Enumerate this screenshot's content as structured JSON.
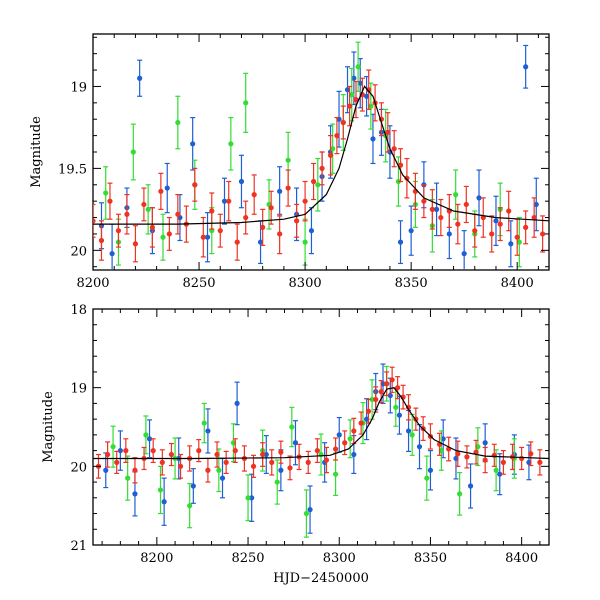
{
  "figure": {
    "colors": {
      "blue": "#1f5fd6",
      "green": "#33dd33",
      "red": "#ee3322",
      "fit": "#000000"
    }
  },
  "chart_data": [
    {
      "type": "scatter",
      "panel": "top",
      "xlabel": "",
      "ylabel": "Magnitude",
      "xlim": [
        8200,
        8415
      ],
      "ylim": [
        20.12,
        18.68
      ],
      "y_inverted": true,
      "x_ticks": [
        8200,
        8250,
        8300,
        8350,
        8400
      ],
      "x_tick_labels": [
        "8200",
        "8250",
        "8300",
        "8350",
        "8400"
      ],
      "y_ticks": [
        19,
        19.5,
        20
      ],
      "y_tick_labels": [
        "19",
        "19.5",
        "20"
      ],
      "series": [
        {
          "color": "blue",
          "x": [
            8204,
            8209,
            8216,
            8222,
            8228,
            8235,
            8241,
            8247,
            8254,
            8262,
            8270,
            8279,
            8288,
            8296,
            8303,
            8308,
            8312,
            8316,
            8320,
            8323,
            8326,
            8329,
            8332,
            8336,
            8340,
            8345,
            8350,
            8356,
            8362,
            8368,
            8375,
            8382,
            8390,
            8397,
            8404,
            8409
          ],
          "y": [
            19.85,
            20.02,
            19.74,
            18.95,
            19.88,
            19.62,
            19.8,
            19.35,
            19.92,
            19.7,
            19.58,
            19.95,
            19.64,
            19.78,
            19.88,
            19.55,
            19.4,
            19.2,
            19.02,
            18.95,
            18.98,
            19.06,
            19.32,
            19.28,
            19.4,
            19.95,
            19.88,
            19.6,
            19.75,
            19.9,
            20.02,
            19.68,
            19.82,
            19.96,
            18.88,
            19.72
          ],
          "yerr": [
            0.14,
            0.18,
            0.12,
            0.11,
            0.14,
            0.15,
            0.14,
            0.16,
            0.15,
            0.14,
            0.16,
            0.13,
            0.15,
            0.16,
            0.14,
            0.15,
            0.16,
            0.17,
            0.14,
            0.16,
            0.15,
            0.12,
            0.15,
            0.14,
            0.16,
            0.13,
            0.15,
            0.14,
            0.16,
            0.15,
            0.14,
            0.17,
            0.15,
            0.14,
            0.13,
            0.16
          ]
        },
        {
          "color": "green",
          "x": [
            8206,
            8212,
            8219,
            8226,
            8233,
            8240,
            8248,
            8256,
            8265,
            8272,
            8283,
            8292,
            8300,
            8306,
            8313,
            8318,
            8322,
            8325,
            8331,
            8338,
            8344,
            8352,
            8360,
            8371,
            8380,
            8392,
            8401
          ],
          "y": [
            19.65,
            19.95,
            19.4,
            19.75,
            19.92,
            19.22,
            19.6,
            19.88,
            19.35,
            19.1,
            19.72,
            19.45,
            19.95,
            19.6,
            19.38,
            19.22,
            19.05,
            18.88,
            19.12,
            19.3,
            19.58,
            19.72,
            19.85,
            19.66,
            19.9,
            19.75,
            19.95
          ],
          "yerr": [
            0.16,
            0.14,
            0.17,
            0.15,
            0.14,
            0.16,
            0.15,
            0.14,
            0.16,
            0.18,
            0.15,
            0.17,
            0.14,
            0.16,
            0.15,
            0.17,
            0.16,
            0.15,
            0.14,
            0.16,
            0.15,
            0.14,
            0.16,
            0.15,
            0.14,
            0.16,
            0.15
          ]
        },
        {
          "color": "red",
          "x": [
            8200,
            8204,
            8208,
            8212,
            8216,
            8220,
            8224,
            8228,
            8232,
            8236,
            8240,
            8244,
            8248,
            8252,
            8256,
            8260,
            8264,
            8268,
            8272,
            8276,
            8280,
            8284,
            8288,
            8292,
            8296,
            8300,
            8304,
            8308,
            8312,
            8315,
            8318,
            8321,
            8324,
            8327,
            8330,
            8333,
            8336,
            8339,
            8342,
            8345,
            8348,
            8352,
            8356,
            8360,
            8364,
            8368,
            8372,
            8376,
            8380,
            8384,
            8388,
            8392,
            8396,
            8400,
            8404,
            8408,
            8412
          ],
          "y": [
            19.82,
            19.94,
            19.7,
            19.88,
            19.78,
            19.96,
            19.72,
            19.86,
            19.64,
            19.9,
            19.78,
            19.84,
            19.6,
            19.92,
            19.76,
            19.88,
            19.7,
            19.95,
            19.8,
            19.66,
            19.86,
            19.74,
            19.9,
            19.62,
            19.82,
            19.7,
            19.58,
            19.5,
            19.42,
            19.3,
            19.22,
            19.12,
            19.08,
            19.05,
            19.02,
            19.1,
            19.2,
            19.28,
            19.38,
            19.48,
            19.56,
            19.64,
            19.7,
            19.75,
            19.8,
            19.76,
            19.84,
            19.72,
            19.88,
            19.8,
            19.9,
            19.84,
            19.76,
            19.92,
            19.86,
            19.8,
            19.9
          ],
          "yerr": [
            0.1,
            0.12,
            0.11,
            0.1,
            0.12,
            0.11,
            0.1,
            0.12,
            0.11,
            0.1,
            0.12,
            0.11,
            0.1,
            0.12,
            0.11,
            0.1,
            0.12,
            0.11,
            0.1,
            0.12,
            0.11,
            0.1,
            0.12,
            0.11,
            0.1,
            0.12,
            0.11,
            0.1,
            0.12,
            0.11,
            0.1,
            0.12,
            0.11,
            0.1,
            0.12,
            0.11,
            0.1,
            0.12,
            0.11,
            0.1,
            0.12,
            0.11,
            0.1,
            0.12,
            0.11,
            0.1,
            0.12,
            0.11,
            0.1,
            0.12,
            0.11,
            0.1,
            0.12,
            0.11,
            0.1,
            0.12,
            0.11
          ]
        }
      ],
      "fit_curve": {
        "x": [
          8200,
          8240,
          8270,
          8290,
          8300,
          8310,
          8316,
          8320,
          8324,
          8328,
          8332,
          8336,
          8340,
          8346,
          8356,
          8370,
          8390,
          8415
        ],
        "y": [
          19.84,
          19.84,
          19.83,
          19.81,
          19.78,
          19.66,
          19.5,
          19.32,
          19.12,
          19.0,
          19.06,
          19.22,
          19.38,
          19.54,
          19.68,
          19.76,
          19.8,
          19.82
        ]
      }
    },
    {
      "type": "scatter",
      "panel": "bottom",
      "xlabel": "HJD−2450000",
      "ylabel": "Magnitude",
      "xlim": [
        8165,
        8415
      ],
      "ylim": [
        21,
        18
      ],
      "y_inverted": true,
      "x_ticks": [
        8200,
        8250,
        8300,
        8350,
        8400
      ],
      "x_tick_labels": [
        "8200",
        "8250",
        "8300",
        "8350",
        "8400"
      ],
      "y_ticks": [
        18,
        19,
        20,
        21
      ],
      "y_tick_labels": [
        "18",
        "19",
        "20",
        "21"
      ],
      "series": [
        {
          "color": "blue",
          "x": [
            8172,
            8180,
            8188,
            8196,
            8204,
            8212,
            8220,
            8228,
            8236,
            8244,
            8252,
            8260,
            8268,
            8276,
            8284,
            8292,
            8300,
            8308,
            8315,
            8320,
            8324,
            8328,
            8333,
            8338,
            8344,
            8350,
            8357,
            8364,
            8372,
            8380,
            8388,
            8396,
            8404
          ],
          "y": [
            20.05,
            19.8,
            20.35,
            19.65,
            20.45,
            19.9,
            20.25,
            19.55,
            20.15,
            19.2,
            20.4,
            19.85,
            20.05,
            19.7,
            20.55,
            19.95,
            19.6,
            19.85,
            19.4,
            19.05,
            18.95,
            19.1,
            19.35,
            19.55,
            19.75,
            20.05,
            19.65,
            19.9,
            20.25,
            19.7,
            20.1,
            19.85,
            19.95
          ],
          "yerr": [
            0.22,
            0.25,
            0.28,
            0.24,
            0.3,
            0.26,
            0.22,
            0.28,
            0.25,
            0.27,
            0.3,
            0.24,
            0.26,
            0.28,
            0.3,
            0.25,
            0.22,
            0.24,
            0.26,
            0.23,
            0.25,
            0.22,
            0.24,
            0.26,
            0.28,
            0.25,
            0.24,
            0.26,
            0.28,
            0.24,
            0.26,
            0.25,
            0.22
          ]
        },
        {
          "color": "green",
          "x": [
            8176,
            8184,
            8194,
            8202,
            8210,
            8218,
            8226,
            8234,
            8242,
            8250,
            8258,
            8266,
            8274,
            8282,
            8290,
            8298,
            8306,
            8313,
            8318,
            8326,
            8331,
            8340,
            8348,
            8356,
            8366,
            8376,
            8386,
            8396
          ],
          "y": [
            19.75,
            20.15,
            19.6,
            20.3,
            19.9,
            20.5,
            19.45,
            20.05,
            19.7,
            20.4,
            19.8,
            20.2,
            19.5,
            20.6,
            19.85,
            20.1,
            19.65,
            19.45,
            19.15,
            18.95,
            19.25,
            19.6,
            20.15,
            19.8,
            20.35,
            19.75,
            20.05,
            19.9
          ],
          "yerr": [
            0.26,
            0.28,
            0.24,
            0.3,
            0.26,
            0.28,
            0.25,
            0.27,
            0.24,
            0.29,
            0.26,
            0.28,
            0.25,
            0.3,
            0.26,
            0.27,
            0.24,
            0.26,
            0.25,
            0.22,
            0.24,
            0.26,
            0.28,
            0.25,
            0.27,
            0.24,
            0.26,
            0.25
          ]
        },
        {
          "color": "red",
          "x": [
            8168,
            8173,
            8178,
            8183,
            8188,
            8193,
            8198,
            8203,
            8208,
            8213,
            8218,
            8223,
            8228,
            8233,
            8238,
            8243,
            8248,
            8253,
            8258,
            8263,
            8268,
            8273,
            8278,
            8283,
            8288,
            8293,
            8298,
            8303,
            8308,
            8312,
            8316,
            8320,
            8323,
            8326,
            8329,
            8332,
            8335,
            8338,
            8342,
            8346,
            8350,
            8355,
            8360,
            8365,
            8370,
            8375,
            8380,
            8385,
            8390,
            8395,
            8400,
            8405,
            8410
          ],
          "y": [
            20.0,
            19.85,
            19.95,
            19.8,
            20.05,
            19.9,
            19.8,
            19.95,
            19.85,
            20.0,
            19.9,
            19.8,
            20.05,
            19.85,
            19.95,
            19.8,
            19.9,
            20.0,
            19.85,
            19.95,
            19.82,
            20.02,
            19.88,
            19.95,
            19.8,
            19.92,
            19.78,
            19.7,
            19.55,
            19.45,
            19.3,
            19.15,
            19.05,
            18.95,
            18.9,
            19.0,
            19.12,
            19.25,
            19.4,
            19.52,
            19.62,
            19.72,
            19.78,
            19.84,
            19.88,
            19.82,
            19.92,
            19.86,
            19.95,
            19.88,
            19.9,
            19.84,
            19.95
          ],
          "yerr": [
            0.15,
            0.16,
            0.14,
            0.15,
            0.16,
            0.14,
            0.15,
            0.16,
            0.14,
            0.15,
            0.16,
            0.14,
            0.15,
            0.16,
            0.14,
            0.15,
            0.16,
            0.14,
            0.15,
            0.16,
            0.14,
            0.15,
            0.16,
            0.14,
            0.15,
            0.16,
            0.14,
            0.15,
            0.16,
            0.14,
            0.15,
            0.16,
            0.14,
            0.15,
            0.16,
            0.14,
            0.15,
            0.16,
            0.14,
            0.15,
            0.16,
            0.14,
            0.15,
            0.16,
            0.14,
            0.15,
            0.16,
            0.14,
            0.15,
            0.16,
            0.14,
            0.15,
            0.16
          ]
        }
      ],
      "fit_curve": {
        "x": [
          8165,
          8220,
          8270,
          8295,
          8305,
          8313,
          8318,
          8322,
          8326,
          8330,
          8334,
          8338,
          8344,
          8352,
          8364,
          8380,
          8415
        ],
        "y": [
          19.9,
          19.9,
          19.89,
          19.86,
          19.78,
          19.6,
          19.4,
          19.18,
          19.02,
          19.0,
          19.12,
          19.28,
          19.48,
          19.66,
          19.8,
          19.87,
          19.9
        ]
      }
    }
  ]
}
